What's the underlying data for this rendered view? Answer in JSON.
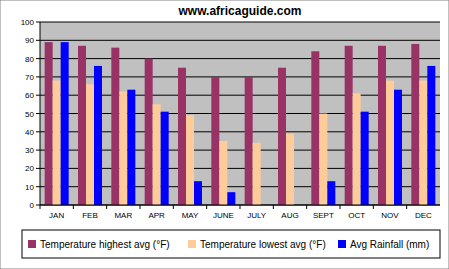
{
  "chart_data": {
    "type": "bar",
    "title": "www.africaguide.com",
    "categories": [
      "JAN",
      "FEB",
      "MAR",
      "APR",
      "MAY",
      "JUNE",
      "JULY",
      "AUG",
      "SEPT",
      "OCT",
      "NOV",
      "DEC"
    ],
    "series": [
      {
        "name": "Temperature highest avg (°F)",
        "color": "#993366",
        "values": [
          89,
          87,
          86,
          80,
          75,
          70,
          70,
          75,
          84,
          87,
          87,
          88
        ]
      },
      {
        "name": "Temperature lowest avg (°F)",
        "color": "#ffcc99",
        "values": [
          68,
          66,
          62,
          55,
          49,
          35,
          34,
          39,
          50,
          61,
          68,
          68
        ]
      },
      {
        "name": "Avg Rainfall (mm)",
        "color": "#0000ff",
        "values": [
          89,
          76,
          63,
          51,
          13,
          7,
          0,
          0,
          13,
          51,
          63,
          76
        ]
      }
    ],
    "ylim": [
      0,
      100
    ],
    "yticks": [
      0,
      10,
      20,
      30,
      40,
      50,
      60,
      70,
      80,
      90,
      100
    ],
    "grid": true,
    "legend": "bottom"
  }
}
